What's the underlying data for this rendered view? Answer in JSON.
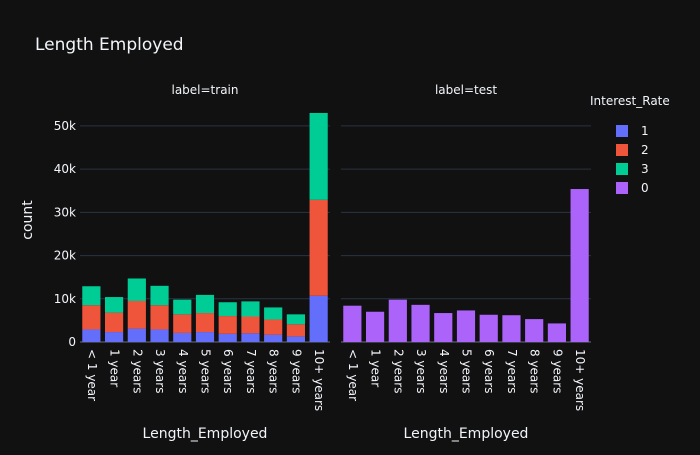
{
  "chart_data": {
    "type": "bar",
    "title": "Length Employed",
    "ylabel": "count",
    "ylim": [
      0,
      56000
    ],
    "yticks": [
      {
        "value": 0,
        "label": "0"
      },
      {
        "value": 10000,
        "label": "10k"
      },
      {
        "value": 20000,
        "label": "20k"
      },
      {
        "value": 30000,
        "label": "30k"
      },
      {
        "value": 40000,
        "label": "40k"
      },
      {
        "value": 50000,
        "label": "50k"
      }
    ],
    "grid": true,
    "barmode": "stack",
    "categories": [
      "< 1 year",
      "1 year",
      "2 years",
      "3 years",
      "4 years",
      "5 years",
      "6 years",
      "7 years",
      "8 years",
      "9 years",
      "10+ years"
    ],
    "legend": {
      "title": "Interest_Rate",
      "placement": "right",
      "items": [
        {
          "label": "1",
          "color": "#636efa"
        },
        {
          "label": "2",
          "color": "#ef553b"
        },
        {
          "label": "3",
          "color": "#00cc96"
        },
        {
          "label": "0",
          "color": "#ab63fa"
        }
      ]
    },
    "panels": [
      {
        "title": "label=train",
        "xlabel": "Length_Employed",
        "series": [
          {
            "name": "1",
            "color": "#636efa",
            "values": [
              2900,
              2300,
              3100,
              2900,
              2100,
              2300,
              1900,
              2000,
              1700,
              1300,
              10700
            ]
          },
          {
            "name": "2",
            "color": "#ef553b",
            "values": [
              5600,
              4500,
              6400,
              5600,
              4300,
              4400,
              4100,
              3900,
              3500,
              2800,
              22200
            ]
          },
          {
            "name": "3",
            "color": "#00cc96",
            "values": [
              4400,
              3600,
              5200,
              4500,
              3400,
              4200,
              3200,
              3500,
              2800,
              2300,
              20100
            ]
          }
        ]
      },
      {
        "title": "label=test",
        "xlabel": "Length_Employed",
        "series": [
          {
            "name": "0",
            "color": "#ab63fa",
            "values": [
              8400,
              7000,
              9800,
              8600,
              6700,
              7300,
              6300,
              6200,
              5300,
              4300,
              35400
            ]
          }
        ]
      }
    ]
  }
}
